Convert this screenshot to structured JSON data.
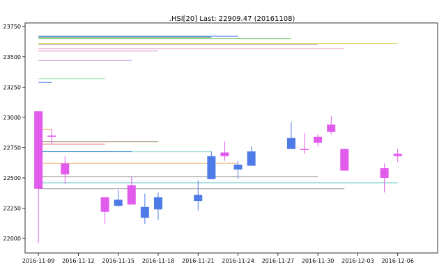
{
  "chart_data": {
    "type": "candlestick",
    "title": ".HSI[20] Last: 22909.47 (20161108)",
    "xlabel": "",
    "ylabel": "",
    "xlim": [
      "2016-11-08",
      "2016-12-09"
    ],
    "ylim": [
      21880,
      23780
    ],
    "grid": false,
    "x_tick_labels": [
      "2016-11-09",
      "2016-11-12",
      "2016-11-15",
      "2016-11-18",
      "2016-11-21",
      "2016-11-24",
      "2016-11-27",
      "2016-11-30",
      "2016-12-03",
      "2016-12-06"
    ],
    "y_tick_labels": [
      "22000",
      "22250",
      "22500",
      "22750",
      "23000",
      "23250",
      "23500",
      "23750"
    ],
    "colors": {
      "up": "#4f7be8",
      "down": "#e15cec"
    },
    "candles": [
      {
        "date": "2016-11-09",
        "open": 23050,
        "high": 23050,
        "low": 21960,
        "close": 22410
      },
      {
        "date": "2016-11-10",
        "open": 22850,
        "high": 22900,
        "low": 22780,
        "close": 22840
      },
      {
        "date": "2016-11-11",
        "open": 22620,
        "high": 22680,
        "low": 22450,
        "close": 22530
      },
      {
        "date": "2016-11-14",
        "open": 22340,
        "high": 22340,
        "low": 22120,
        "close": 22220
      },
      {
        "date": "2016-11-15",
        "open": 22270,
        "high": 22400,
        "low": 22260,
        "close": 22320
      },
      {
        "date": "2016-11-16",
        "open": 22440,
        "high": 22510,
        "low": 22280,
        "close": 22280
      },
      {
        "date": "2016-11-17",
        "open": 22170,
        "high": 22370,
        "low": 22120,
        "close": 22260
      },
      {
        "date": "2016-11-18",
        "open": 22240,
        "high": 22380,
        "low": 22150,
        "close": 22340
      },
      {
        "date": "2016-11-21",
        "open": 22310,
        "high": 22480,
        "low": 22230,
        "close": 22360
      },
      {
        "date": "2016-11-22",
        "open": 22490,
        "high": 22720,
        "low": 22490,
        "close": 22680
      },
      {
        "date": "2016-11-23",
        "open": 22710,
        "high": 22800,
        "low": 22640,
        "close": 22680
      },
      {
        "date": "2016-11-24",
        "open": 22570,
        "high": 22640,
        "low": 22490,
        "close": 22610
      },
      {
        "date": "2016-11-25",
        "open": 22600,
        "high": 22760,
        "low": 22600,
        "close": 22720
      },
      {
        "date": "2016-11-28",
        "open": 22740,
        "high": 22960,
        "low": 22740,
        "close": 22830
      },
      {
        "date": "2016-11-29",
        "open": 22740,
        "high": 22870,
        "low": 22700,
        "close": 22730
      },
      {
        "date": "2016-11-30",
        "open": 22840,
        "high": 22860,
        "low": 22760,
        "close": 22790
      },
      {
        "date": "2016-12-01",
        "open": 22940,
        "high": 23010,
        "low": 22860,
        "close": 22880
      },
      {
        "date": "2016-12-02",
        "open": 22740,
        "high": 22740,
        "low": 22560,
        "close": 22560
      },
      {
        "date": "2016-12-05",
        "open": 22580,
        "high": 22620,
        "low": 22380,
        "close": 22500
      },
      {
        "date": "2016-12-06",
        "open": 22700,
        "high": 22740,
        "low": 22630,
        "close": 22680
      }
    ],
    "level_lines": [
      {
        "y": 23670,
        "from": "2016-11-09",
        "to": "2016-11-24",
        "color": "#4f7be8"
      },
      {
        "y": 23665,
        "from": "2016-11-09",
        "to": "2016-11-22",
        "color": "#5ec8c0"
      },
      {
        "y": 23660,
        "from": "2016-11-09",
        "to": "2016-11-22",
        "color": "#9a8a60"
      },
      {
        "y": 23650,
        "from": "2016-11-09",
        "to": "2016-11-28",
        "color": "#7fce7f"
      },
      {
        "y": 23610,
        "from": "2016-11-09",
        "to": "2016-12-06",
        "color": "#d8d860"
      },
      {
        "y": 23600,
        "from": "2016-11-09",
        "to": "2016-11-30",
        "color": "#909090"
      },
      {
        "y": 23570,
        "from": "2016-11-09",
        "to": "2016-12-02",
        "color": "#f0a8c8"
      },
      {
        "y": 23550,
        "from": "2016-11-09",
        "to": "2016-11-18",
        "color": "#e090e0"
      },
      {
        "y": 23470,
        "from": "2016-11-09",
        "to": "2016-11-16",
        "color": "#b070d0"
      },
      {
        "y": 23320,
        "from": "2016-11-09",
        "to": "2016-11-14",
        "color": "#6ccf6c"
      },
      {
        "y": 23290,
        "from": "2016-11-09",
        "to": "2016-11-10",
        "color": "#4f7be8"
      },
      {
        "y": 22900,
        "from": "2016-11-09",
        "to": "2016-11-10",
        "color": "#f2b06a"
      },
      {
        "y": 22800,
        "from": "2016-11-09",
        "to": "2016-11-18",
        "color": "#a08a70"
      },
      {
        "y": 22780,
        "from": "2016-11-09",
        "to": "2016-11-14",
        "color": "#e07070"
      },
      {
        "y": 22720,
        "from": "2016-11-09",
        "to": "2016-11-16",
        "color": "#4f7be8"
      },
      {
        "y": 22715,
        "from": "2016-11-09",
        "to": "2016-11-22",
        "color": "#5ec8c0"
      },
      {
        "y": 22620,
        "from": "2016-11-09",
        "to": "2016-11-24",
        "color": "#f2a85a"
      },
      {
        "y": 22510,
        "from": "2016-11-09",
        "to": "2016-11-30",
        "color": "#808080"
      },
      {
        "y": 22460,
        "from": "2016-11-09",
        "to": "2016-12-06",
        "color": "#5ec8c0"
      },
      {
        "y": 22410,
        "from": "2016-11-09",
        "to": "2016-12-02",
        "color": "#909090"
      }
    ]
  }
}
